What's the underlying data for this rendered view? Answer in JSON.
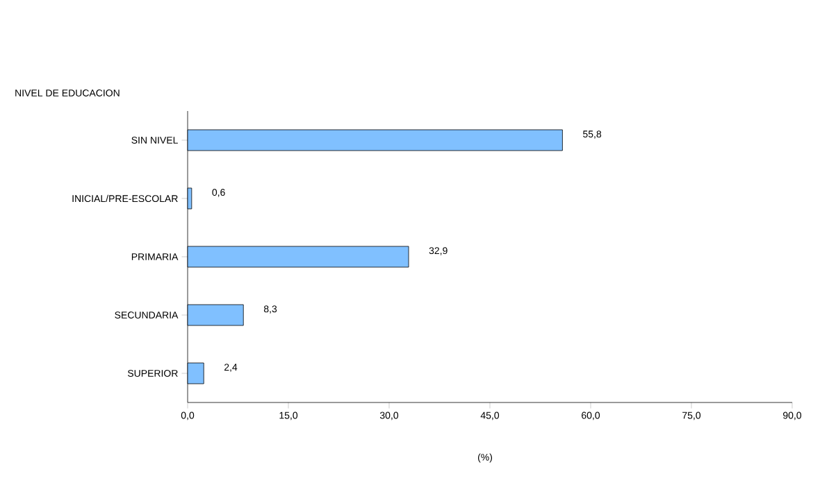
{
  "chart_data": {
    "type": "bar",
    "orientation": "horizontal",
    "ylabel": "NIVEL DE EDUCACION",
    "xlabel": "(%)",
    "categories": [
      "SIN NIVEL",
      "INICIAL/PRE-ESCOLAR",
      "PRIMARIA",
      "SECUNDARIA",
      "SUPERIOR"
    ],
    "values": [
      55.8,
      0.6,
      32.9,
      8.3,
      2.4
    ],
    "value_labels": [
      "55,8",
      "0,6",
      "32,9",
      "8,3",
      "2,4"
    ],
    "color": "#80c0ff",
    "xlim": [
      0,
      90
    ],
    "xticks": [
      {
        "value": 0,
        "label": "0,0"
      },
      {
        "value": 15,
        "label": "15,0"
      },
      {
        "value": 30,
        "label": "30,0"
      },
      {
        "value": 45,
        "label": "45,0"
      },
      {
        "value": 60,
        "label": "60,0"
      },
      {
        "value": 75,
        "label": "75,0"
      },
      {
        "value": 90,
        "label": "90,0"
      }
    ],
    "grid": false
  }
}
